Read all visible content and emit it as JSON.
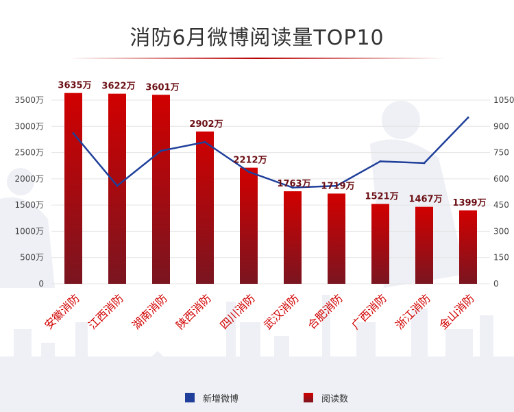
{
  "title": "消防6月微博阅读量TOP10",
  "legend": {
    "line_label": "新增微博",
    "bar_label": "阅读数"
  },
  "colors": {
    "bar_top": "#d10000",
    "bar_bottom": "#7a1520",
    "line": "#1f3f9a",
    "label": "#6b0f14",
    "axis_text": "#444444",
    "grid": "#e4e4e4",
    "title_rule": "#b80000"
  },
  "chart_data": {
    "type": "bar+line",
    "title": "消防6月微博阅读量TOP10",
    "categories": [
      "安徽消防",
      "江西消防",
      "湖南消防",
      "陕西消防",
      "四川消防",
      "武汉消防",
      "合肥消防",
      "广西消防",
      "浙江消防",
      "金山消防"
    ],
    "series": [
      {
        "name": "阅读数",
        "type": "bar",
        "axis": "left",
        "values": [
          3635,
          3622,
          3601,
          2902,
          2212,
          1763,
          1719,
          1521,
          1467,
          1399
        ],
        "labels": [
          "3635万",
          "3622万",
          "3601万",
          "2902万",
          "2212万",
          "1763万",
          "1719万",
          "1521万",
          "1467万",
          "1399万"
        ]
      },
      {
        "name": "新增微博",
        "type": "line",
        "axis": "right",
        "values": [
          860,
          560,
          760,
          810,
          640,
          550,
          560,
          700,
          690,
          950
        ]
      }
    ],
    "y_left": {
      "min": 0,
      "max": 3500,
      "ticks": [
        0,
        500,
        1000,
        1500,
        2000,
        2500,
        3000,
        3500
      ],
      "tick_labels": [
        "0",
        "500万",
        "1000万",
        "1500万",
        "2000万",
        "2500万",
        "3000万",
        "3500万"
      ]
    },
    "y_right": {
      "min": 0,
      "max": 1050,
      "ticks": [
        0,
        150,
        300,
        450,
        600,
        750,
        900,
        1050
      ],
      "tick_labels": [
        "0",
        "150",
        "300",
        "450",
        "600",
        "750",
        "900",
        "1050"
      ]
    },
    "legend_position": "bottom-center",
    "grid": true
  }
}
